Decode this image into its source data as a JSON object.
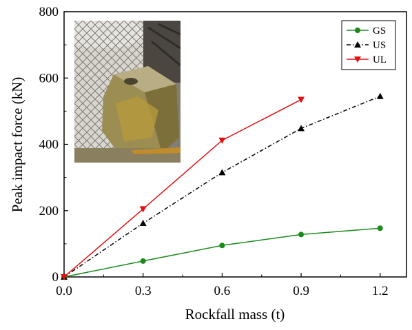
{
  "chart_data": {
    "type": "line",
    "title": "",
    "xlabel": "Rockfall mass (t)",
    "ylabel": "Peak impact force (kN)",
    "xlim": [
      0,
      1.3
    ],
    "ylim": [
      0,
      800
    ],
    "x_ticks": [
      "0.0",
      "0.3",
      "0.6",
      "0.9",
      "1.2"
    ],
    "y_ticks": [
      "0",
      "200",
      "400",
      "600",
      "800"
    ],
    "grid": false,
    "legend_position": "top-right",
    "inset_photo": "rockfall-block-against-gabion-photo",
    "series": [
      {
        "name": "GS",
        "color": "#1a8a1a",
        "marker": "circle",
        "dash": "solid",
        "x": [
          0,
          0.3,
          0.6,
          0.9,
          1.2
        ],
        "y": [
          0,
          48,
          95,
          128,
          147
        ]
      },
      {
        "name": "US",
        "color": "#000000",
        "marker": "triangle-up",
        "dash": "dashdot",
        "x": [
          0,
          0.3,
          0.6,
          0.9,
          1.2
        ],
        "y": [
          0,
          162,
          315,
          448,
          545
        ]
      },
      {
        "name": "UL",
        "color": "#e01010",
        "marker": "triangle-down",
        "dash": "solid",
        "x": [
          0,
          0.3,
          0.6,
          0.9
        ],
        "y": [
          0,
          205,
          412,
          535
        ]
      }
    ]
  }
}
